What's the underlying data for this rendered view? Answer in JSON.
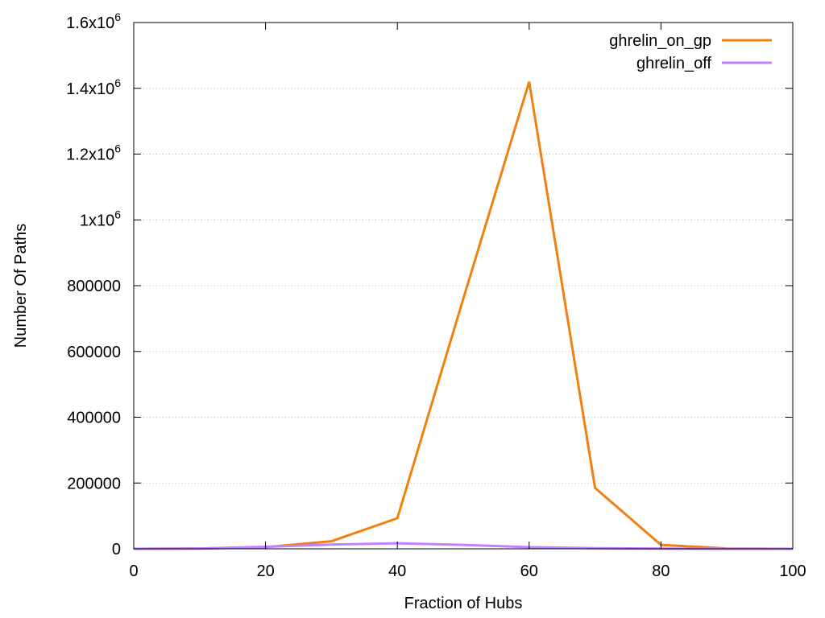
{
  "chart_data": {
    "type": "line",
    "title": "",
    "xlabel": "Fraction of Hubs",
    "ylabel": "Number Of Paths",
    "xlim": [
      0,
      100
    ],
    "ylim": [
      0,
      1600000
    ],
    "grid": "horizontal dotted",
    "legend_position": "top-right",
    "x_ticks": [
      0,
      20,
      40,
      60,
      80,
      100
    ],
    "x_tick_labels": [
      "0",
      "20",
      "40",
      "60",
      "80",
      "100"
    ],
    "y_ticks": [
      0,
      200000,
      400000,
      600000,
      800000,
      1000000,
      1200000,
      1400000,
      1600000
    ],
    "y_tick_labels": [
      {
        "text": "0"
      },
      {
        "text": "200000"
      },
      {
        "text": "400000"
      },
      {
        "text": "600000"
      },
      {
        "text": "800000"
      },
      {
        "text": "1x10",
        "sup": "6"
      },
      {
        "text": "1.2x10",
        "sup": "6"
      },
      {
        "text": "1.4x10",
        "sup": "6"
      },
      {
        "text": "1.6x10",
        "sup": "6"
      }
    ],
    "series": [
      {
        "name": "ghrelin_on_gp",
        "color": "#f08010",
        "x": [
          0,
          10,
          20,
          30,
          40,
          50,
          60,
          70,
          80,
          90,
          100
        ],
        "values": [
          0,
          1000,
          5000,
          23000,
          93000,
          760000,
          1420000,
          185000,
          12000,
          1000,
          0
        ]
      },
      {
        "name": "ghrelin_off",
        "color": "#c080ff",
        "x": [
          0,
          10,
          20,
          30,
          40,
          50,
          60,
          70,
          80,
          90,
          100
        ],
        "values": [
          0,
          1000,
          6000,
          13000,
          17000,
          12000,
          5000,
          2000,
          500,
          0,
          0
        ]
      }
    ]
  }
}
